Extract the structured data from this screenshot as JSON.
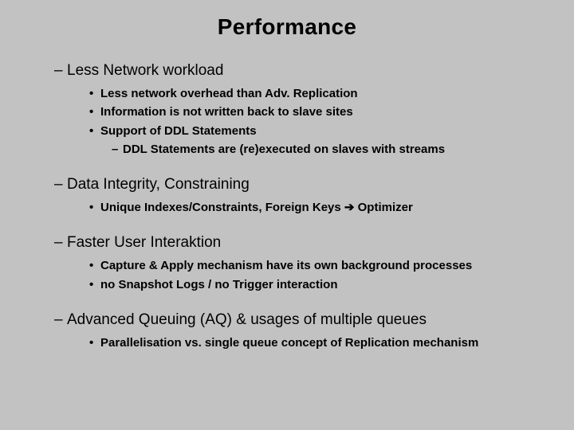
{
  "title": "Performance",
  "sections": [
    {
      "heading": "Less Network workload",
      "items": [
        {
          "text": "Less network overhead than Adv. Replication"
        },
        {
          "text": "Information is not written back to slave sites"
        },
        {
          "text": "Support of DDL Statements",
          "sub": "DDL Statements are (re)executed on slaves with streams"
        }
      ]
    },
    {
      "heading": "Data Integrity, Constraining",
      "items": [
        {
          "text": "Unique Indexes/Constraints, Foreign Keys ➔ Optimizer"
        }
      ]
    },
    {
      "heading": "Faster User Interaktion",
      "items": [
        {
          "text": "Capture & Apply mechanism have its own background processes"
        },
        {
          "text": "no Snapshot Logs / no Trigger interaction"
        }
      ]
    },
    {
      "heading": "Advanced Queuing (AQ)  & usages of multiple queues",
      "items": [
        {
          "text": "Parallelisation vs. single queue concept of Replication mechanism"
        }
      ]
    }
  ],
  "glyphs": {
    "dash": "–",
    "bullet": "•",
    "subdash": "–"
  },
  "style": {
    "background": "#c2c2c2",
    "text_color": "#000000",
    "title_fontsize": 28,
    "heading_fontsize": 19,
    "item_fontsize": 15,
    "font_family": "Arial"
  }
}
